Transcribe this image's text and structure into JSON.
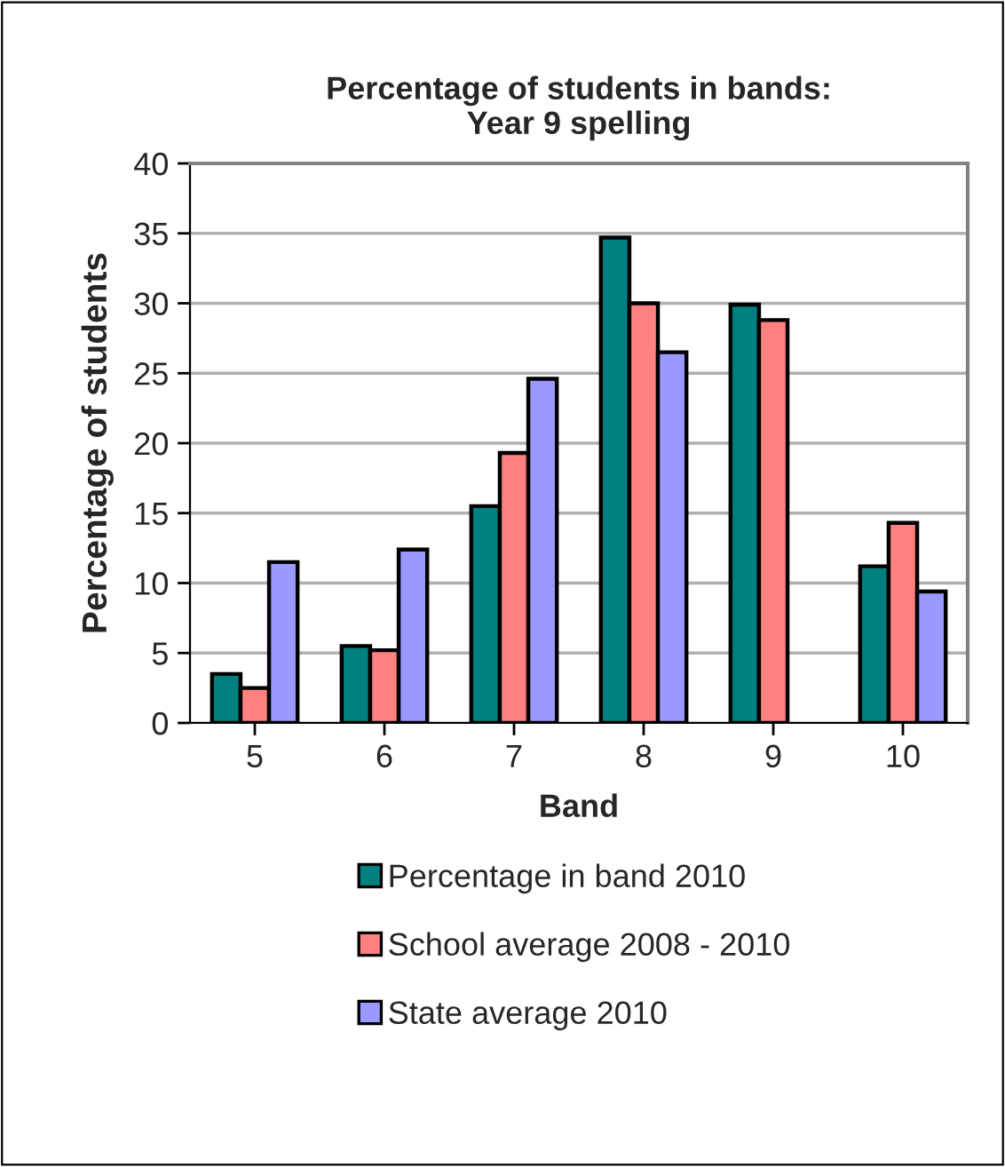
{
  "chart_data": {
    "type": "bar",
    "title": "Percentage of students in bands:\nYear 9 spelling",
    "xlabel": "Band",
    "ylabel": "Percentage of students",
    "categories": [
      "5",
      "6",
      "7",
      "8",
      "9",
      "10"
    ],
    "series": [
      {
        "name": "Percentage in band 2010",
        "color": "#008080",
        "values": [
          3.5,
          5.5,
          15.5,
          34.7,
          29.9,
          11.2
        ]
      },
      {
        "name": "School average 2008 - 2010",
        "color": "#ff8080",
        "values": [
          2.5,
          5.2,
          19.3,
          30.0,
          28.8,
          14.3
        ]
      },
      {
        "name": "State average 2010",
        "color": "#9999ff",
        "values": [
          11.5,
          12.4,
          24.6,
          26.5,
          null,
          9.4
        ]
      }
    ],
    "ylim": [
      0,
      40
    ],
    "yticks": [
      0,
      5,
      10,
      15,
      20,
      25,
      30,
      35,
      40
    ],
    "grid": "y",
    "legend": "bottom"
  }
}
